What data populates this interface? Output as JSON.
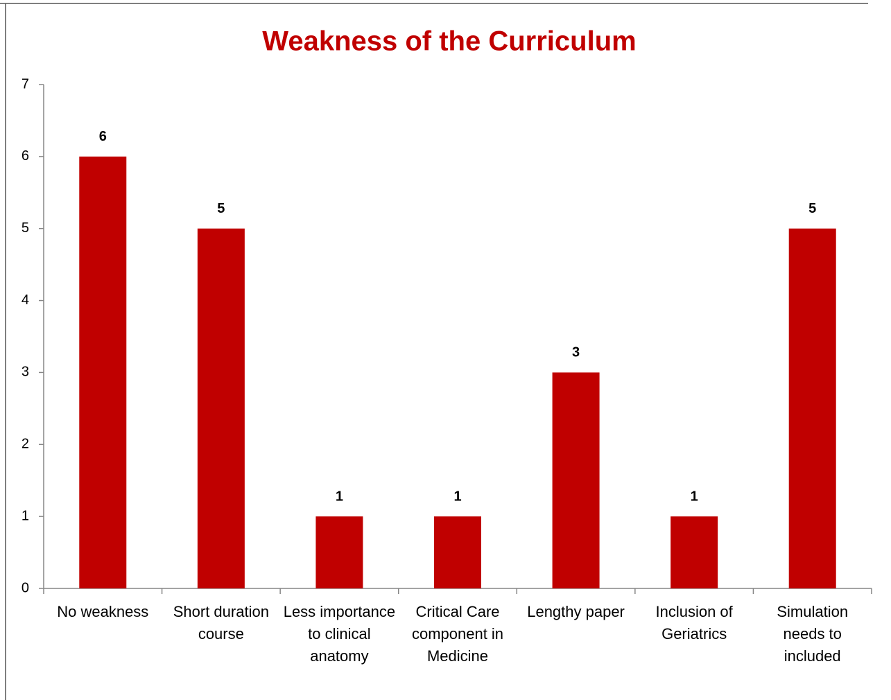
{
  "chart_data": {
    "type": "bar",
    "title": "Weakness of the Curriculum",
    "categories": [
      "No weakness",
      "Short duration course",
      "Less importance to clinical anatomy",
      "Critical Care component in Medicine",
      "Lengthy paper",
      "Inclusion of Geriatrics",
      "Simulation needs to included"
    ],
    "values": [
      6,
      5,
      1,
      1,
      3,
      1,
      5
    ],
    "color": "#c00000",
    "ylim": [
      0,
      7
    ],
    "yticks": [
      0,
      1,
      2,
      3,
      4,
      5,
      6,
      7
    ],
    "grid": false
  }
}
